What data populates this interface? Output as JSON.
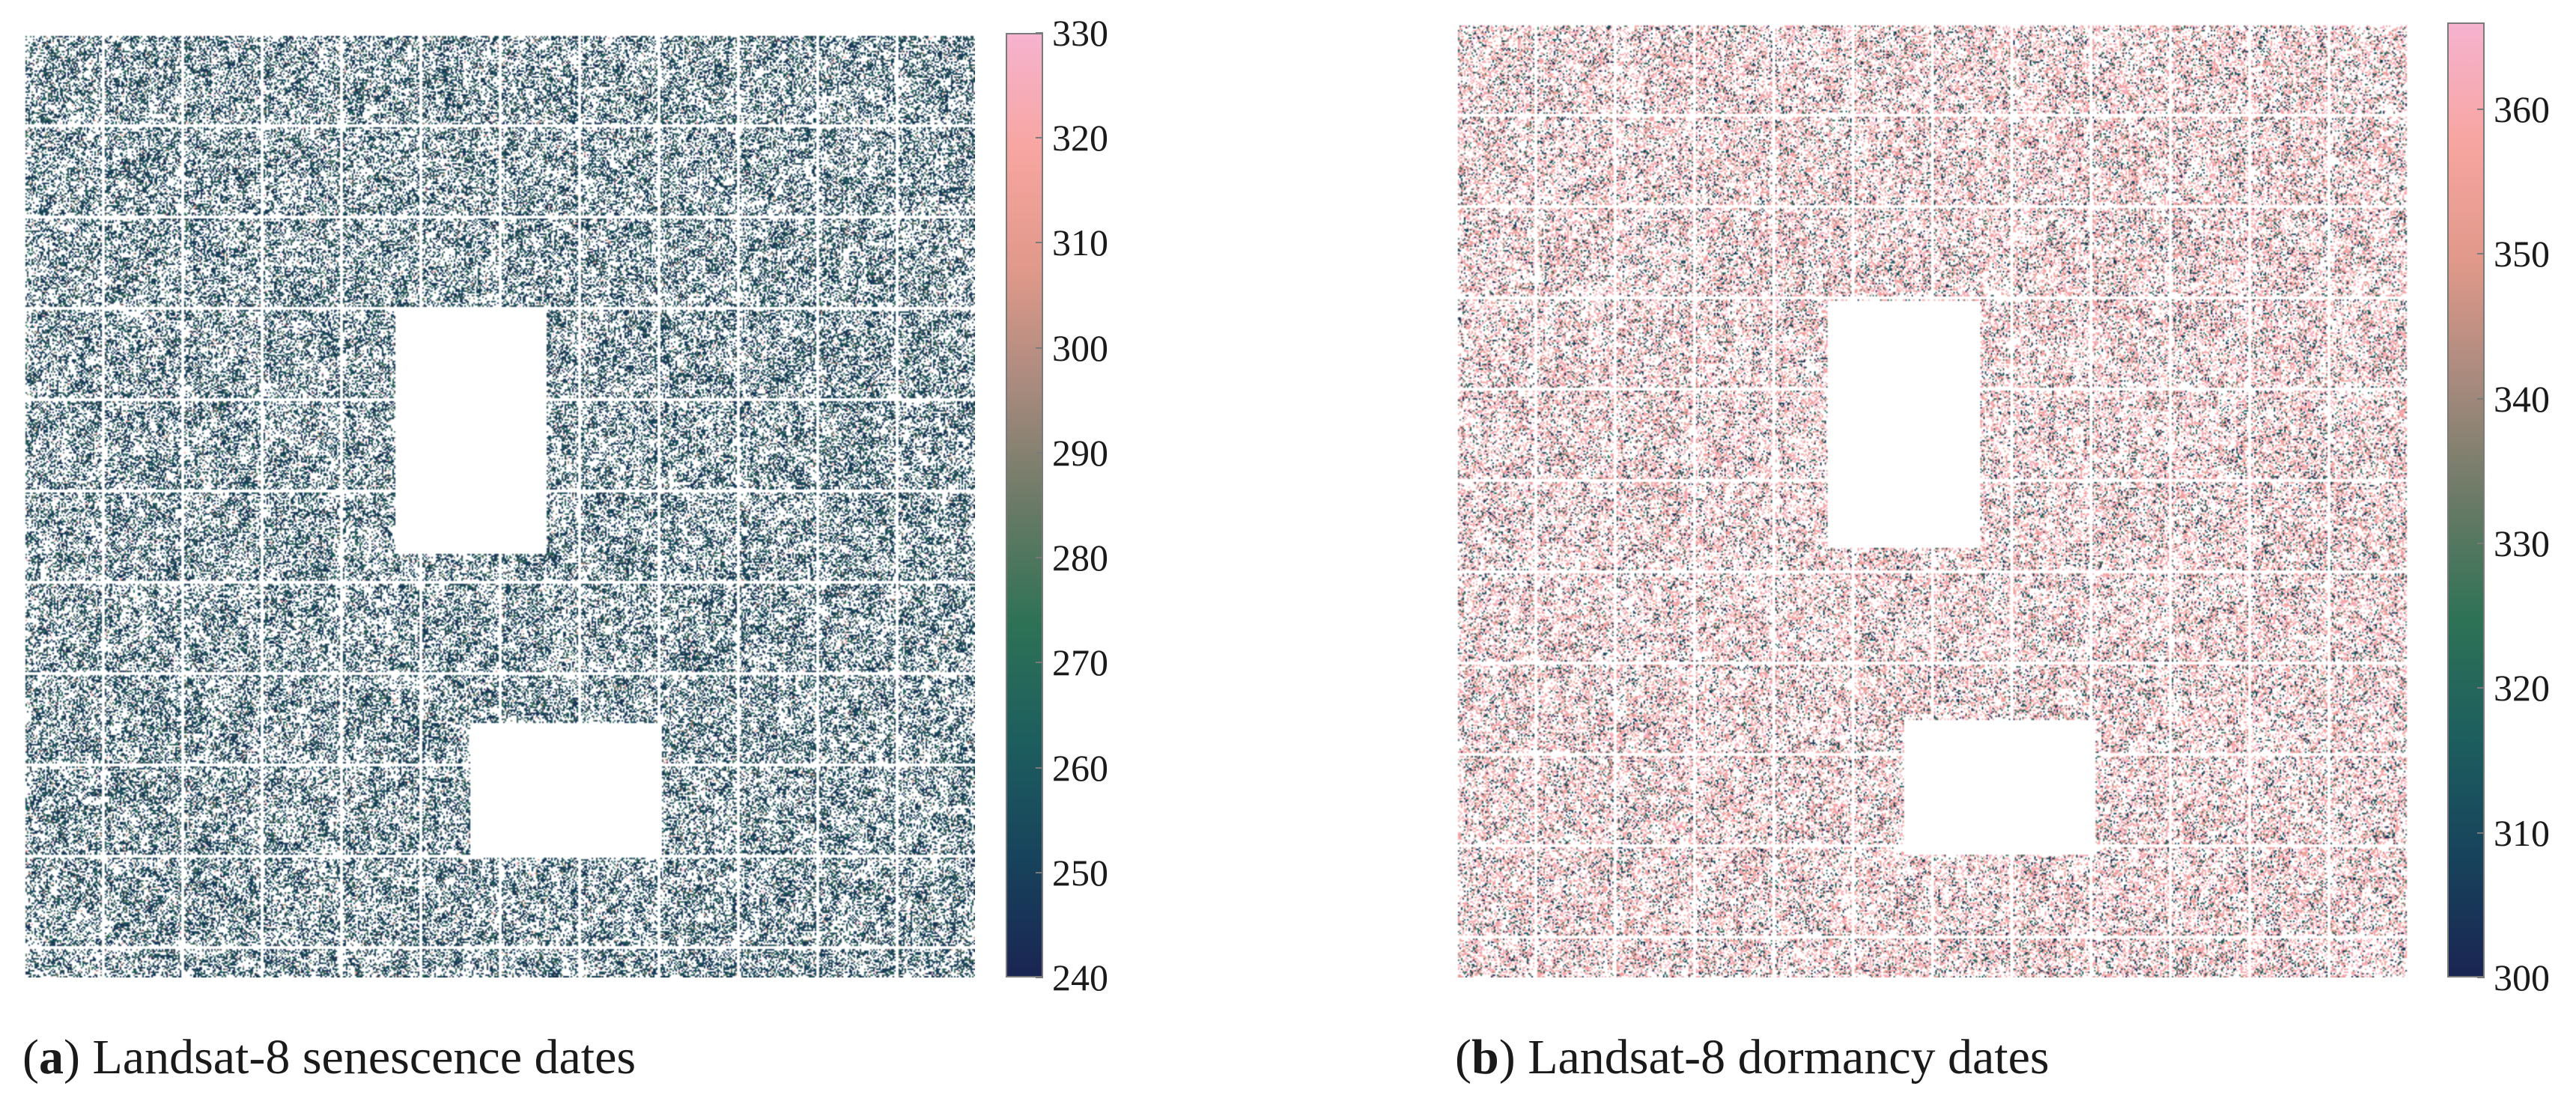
{
  "panels": [
    {
      "caption_letter": "a",
      "caption_text": "Landsat-8 senescence dates",
      "colorbar": {
        "min": 240,
        "max": 330,
        "ticks": [
          "240",
          "250",
          "260",
          "270",
          "280",
          "290",
          "300",
          "310",
          "320",
          "330"
        ]
      },
      "dominant": "low"
    },
    {
      "caption_letter": "b",
      "caption_text": "Landsat-8 dormancy dates",
      "colorbar": {
        "min": 300,
        "max": 366,
        "ticks": [
          "300",
          "310",
          "320",
          "330",
          "340",
          "350",
          "360"
        ]
      },
      "dominant": "high"
    }
  ],
  "colormap": [
    "#1a2552",
    "#17435c",
    "#1d5e5e",
    "#2e7256",
    "#6a7a66",
    "#a88a7e",
    "#e0998a",
    "#f7a5a0",
    "#f6b3cf"
  ]
}
